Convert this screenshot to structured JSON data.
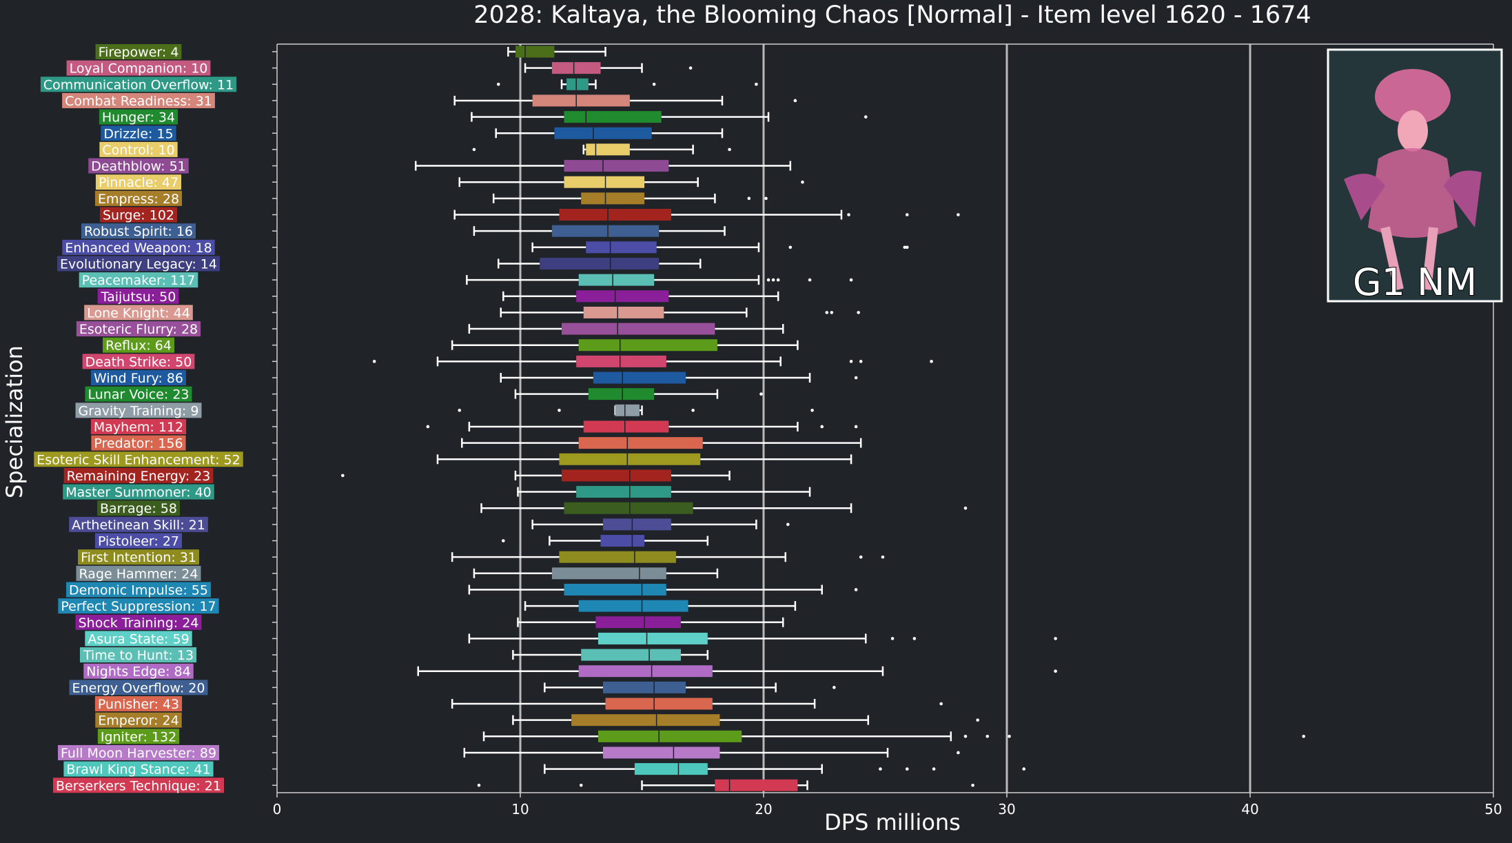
{
  "chart_data": {
    "type": "box",
    "orientation": "horizontal",
    "title": "2028: Kaltaya, the Blooming Chaos [Normal] - Item level 1620 - 1674",
    "xlabel": "DPS millions",
    "ylabel": "Specialization",
    "xlim": [
      0,
      50
    ],
    "xticks": [
      0,
      10,
      20,
      30,
      40,
      50
    ],
    "grid_x": true,
    "inset_label": "G1 NM",
    "series": [
      {
        "label": "Firepower: 4",
        "color": "#4b6e1b",
        "whislo": 9.5,
        "q1": 9.8,
        "med": 10.2,
        "q3": 11.4,
        "whishi": 13.5,
        "fliers": []
      },
      {
        "label": "Loyal Companion: 10",
        "color": "#c45a80",
        "whislo": 10.2,
        "q1": 11.3,
        "med": 12.2,
        "q3": 13.3,
        "whishi": 15.0,
        "fliers": [
          17.0
        ]
      },
      {
        "label": "Communication Overflow: 11",
        "color": "#2e9987",
        "whislo": 11.7,
        "q1": 11.9,
        "med": 12.3,
        "q3": 12.8,
        "whishi": 13.1,
        "fliers": [
          9.1,
          15.5,
          19.7
        ]
      },
      {
        "label": "Combat Readiness: 31",
        "color": "#d5867a",
        "whislo": 7.3,
        "q1": 10.5,
        "med": 12.3,
        "q3": 14.5,
        "whishi": 18.3,
        "fliers": [
          21.3
        ]
      },
      {
        "label": "Hunger: 34",
        "color": "#1f8a2e",
        "whislo": 8.0,
        "q1": 11.8,
        "med": 12.7,
        "q3": 15.8,
        "whishi": 20.2,
        "fliers": [
          24.2
        ]
      },
      {
        "label": "Drizzle: 15",
        "color": "#1e5aa0",
        "whislo": 9.0,
        "q1": 11.4,
        "med": 13.0,
        "q3": 15.4,
        "whishi": 18.3,
        "fliers": []
      },
      {
        "label": "Control: 10",
        "color": "#e8cd6a",
        "whislo": 12.6,
        "q1": 12.7,
        "med": 13.1,
        "q3": 14.5,
        "whishi": 17.1,
        "fliers": [
          8.1,
          18.6
        ]
      },
      {
        "label": "Deathblow: 51",
        "color": "#8e4a93",
        "whislo": 5.7,
        "q1": 11.8,
        "med": 13.4,
        "q3": 16.1,
        "whishi": 21.1,
        "fliers": []
      },
      {
        "label": "Pinnacle: 47",
        "color": "#e8cd6a",
        "whislo": 7.5,
        "q1": 11.8,
        "med": 13.5,
        "q3": 15.1,
        "whishi": 17.3,
        "fliers": [
          21.6
        ]
      },
      {
        "label": "Empress: 28",
        "color": "#a67d29",
        "whislo": 8.9,
        "q1": 12.5,
        "med": 13.5,
        "q3": 15.1,
        "whishi": 18.0,
        "fliers": [
          19.4,
          20.1
        ]
      },
      {
        "label": "Surge: 102",
        "color": "#a3231f",
        "whislo": 7.3,
        "q1": 11.6,
        "med": 13.6,
        "q3": 16.2,
        "whishi": 23.2,
        "fliers": [
          23.5,
          25.9,
          28.0
        ]
      },
      {
        "label": "Robust Spirit: 16",
        "color": "#3d5f91",
        "whislo": 8.1,
        "q1": 11.3,
        "med": 13.6,
        "q3": 15.7,
        "whishi": 18.4,
        "fliers": []
      },
      {
        "label": "Enhanced Weapon: 18",
        "color": "#4c4da6",
        "whislo": 10.5,
        "q1": 12.7,
        "med": 13.7,
        "q3": 15.6,
        "whishi": 19.8,
        "fliers": [
          21.1,
          25.8,
          25.9
        ]
      },
      {
        "label": "Evolutionary Legacy: 14",
        "color": "#3d3f80",
        "whislo": 9.1,
        "q1": 10.8,
        "med": 13.7,
        "q3": 15.7,
        "whishi": 17.4,
        "fliers": []
      },
      {
        "label": "Peacemaker: 117",
        "color": "#5bbfb5",
        "whislo": 7.8,
        "q1": 12.4,
        "med": 13.8,
        "q3": 15.5,
        "whishi": 19.8,
        "fliers": [
          20.2,
          20.4,
          20.6,
          21.9,
          23.6
        ]
      },
      {
        "label": "Taijutsu: 50",
        "color": "#8b1f9a",
        "whislo": 9.3,
        "q1": 12.3,
        "med": 13.9,
        "q3": 16.1,
        "whishi": 20.6,
        "fliers": []
      },
      {
        "label": "Lone Knight: 44",
        "color": "#d99890",
        "whislo": 9.2,
        "q1": 12.6,
        "med": 14.0,
        "q3": 15.9,
        "whishi": 19.3,
        "fliers": [
          22.6,
          22.8,
          23.9
        ]
      },
      {
        "label": "Esoteric Flurry: 28",
        "color": "#98509a",
        "whislo": 7.9,
        "q1": 11.7,
        "med": 14.0,
        "q3": 18.0,
        "whishi": 20.8,
        "fliers": []
      },
      {
        "label": "Reflux: 64",
        "color": "#5d9b1a",
        "whislo": 7.2,
        "q1": 12.4,
        "med": 14.1,
        "q3": 18.1,
        "whishi": 21.4,
        "fliers": []
      },
      {
        "label": "Death Strike: 50",
        "color": "#d1466e",
        "whislo": 6.6,
        "q1": 12.3,
        "med": 14.1,
        "q3": 16.0,
        "whishi": 20.7,
        "fliers": [
          4.0,
          23.6,
          24.0,
          26.9
        ]
      },
      {
        "label": "Wind Fury: 86",
        "color": "#1e5aa0",
        "whislo": 9.2,
        "q1": 13.0,
        "med": 14.2,
        "q3": 16.8,
        "whishi": 21.9,
        "fliers": [
          23.8
        ]
      },
      {
        "label": "Lunar Voice: 23",
        "color": "#1f8a2e",
        "whislo": 9.8,
        "q1": 12.8,
        "med": 14.2,
        "q3": 15.5,
        "whishi": 18.1,
        "fliers": [
          19.9
        ]
      },
      {
        "label": "Gravity Training: 9",
        "color": "#8f9ea6",
        "whislo": 13.9,
        "q1": 13.9,
        "med": 14.3,
        "q3": 14.9,
        "whishi": 15.0,
        "fliers": [
          7.5,
          11.6,
          17.1,
          22.0
        ]
      },
      {
        "label": "Mayhem: 112",
        "color": "#d13a52",
        "whislo": 7.9,
        "q1": 12.6,
        "med": 14.3,
        "q3": 16.1,
        "whishi": 21.4,
        "fliers": [
          6.2,
          22.4,
          23.8
        ]
      },
      {
        "label": "Predator: 156",
        "color": "#d9664e",
        "whislo": 7.6,
        "q1": 12.4,
        "med": 14.4,
        "q3": 17.5,
        "whishi": 24.0,
        "fliers": []
      },
      {
        "label": "Esoteric Skill Enhancement: 52",
        "color": "#9e9a20",
        "whislo": 6.6,
        "q1": 11.6,
        "med": 14.4,
        "q3": 17.4,
        "whishi": 23.6,
        "fliers": []
      },
      {
        "label": "Remaining Energy: 23",
        "color": "#a3231f",
        "whislo": 9.8,
        "q1": 11.7,
        "med": 14.5,
        "q3": 16.2,
        "whishi": 18.6,
        "fliers": [
          2.7
        ]
      },
      {
        "label": "Master Summoner: 40",
        "color": "#2e9987",
        "whislo": 9.9,
        "q1": 12.3,
        "med": 14.5,
        "q3": 16.2,
        "whishi": 21.9,
        "fliers": []
      },
      {
        "label": "Barrage: 58",
        "color": "#3b5e1f",
        "whislo": 8.4,
        "q1": 11.8,
        "med": 14.5,
        "q3": 17.1,
        "whishi": 23.6,
        "fliers": [
          28.3
        ]
      },
      {
        "label": "Arthetinean Skill: 21",
        "color": "#4c4d96",
        "whislo": 10.5,
        "q1": 13.4,
        "med": 14.6,
        "q3": 16.2,
        "whishi": 19.7,
        "fliers": [
          21.0
        ]
      },
      {
        "label": "Pistoleer: 27",
        "color": "#4c4da6",
        "whislo": 11.2,
        "q1": 13.3,
        "med": 14.6,
        "q3": 15.1,
        "whishi": 17.7,
        "fliers": [
          9.3
        ]
      },
      {
        "label": "First Intention: 31",
        "color": "#8f8c1f",
        "whislo": 7.2,
        "q1": 11.6,
        "med": 14.7,
        "q3": 16.4,
        "whishi": 20.9,
        "fliers": [
          24.0,
          24.9
        ]
      },
      {
        "label": "Rage Hammer: 24",
        "color": "#7b8d96",
        "whislo": 8.1,
        "q1": 11.3,
        "med": 14.9,
        "q3": 16.0,
        "whishi": 18.1,
        "fliers": []
      },
      {
        "label": "Demonic Impulse: 55",
        "color": "#1e87b3",
        "whislo": 7.9,
        "q1": 11.8,
        "med": 15.0,
        "q3": 16.0,
        "whishi": 22.4,
        "fliers": [
          23.8
        ]
      },
      {
        "label": "Perfect Suppression: 17",
        "color": "#1e87b3",
        "whislo": 10.2,
        "q1": 12.4,
        "med": 15.0,
        "q3": 16.9,
        "whishi": 21.3,
        "fliers": []
      },
      {
        "label": "Shock Training: 24",
        "color": "#8b1f9a",
        "whislo": 9.9,
        "q1": 13.1,
        "med": 15.1,
        "q3": 16.6,
        "whishi": 20.8,
        "fliers": []
      },
      {
        "label": "Asura State: 59",
        "color": "#5fd0c7",
        "whislo": 7.9,
        "q1": 13.2,
        "med": 15.2,
        "q3": 17.7,
        "whishi": 24.2,
        "fliers": [
          25.3,
          26.2,
          32.0
        ]
      },
      {
        "label": "Time to Hunt: 13",
        "color": "#5bbfb5",
        "whislo": 9.7,
        "q1": 12.5,
        "med": 15.3,
        "q3": 16.6,
        "whishi": 17.7,
        "fliers": []
      },
      {
        "label": "Nights Edge: 84",
        "color": "#b06cc4",
        "whislo": 5.8,
        "q1": 12.4,
        "med": 15.4,
        "q3": 17.9,
        "whishi": 24.9,
        "fliers": [
          32.0
        ]
      },
      {
        "label": "Energy Overflow: 20",
        "color": "#3d5f91",
        "whislo": 11.0,
        "q1": 13.4,
        "med": 15.5,
        "q3": 16.8,
        "whishi": 20.5,
        "fliers": [
          22.9
        ]
      },
      {
        "label": "Punisher: 43",
        "color": "#d9664e",
        "whislo": 7.2,
        "q1": 13.5,
        "med": 15.5,
        "q3": 17.9,
        "whishi": 22.1,
        "fliers": [
          27.3
        ]
      },
      {
        "label": "Emperor: 24",
        "color": "#a67d29",
        "whislo": 9.7,
        "q1": 12.1,
        "med": 15.6,
        "q3": 18.2,
        "whishi": 24.3,
        "fliers": [
          28.8
        ]
      },
      {
        "label": "Igniter: 132",
        "color": "#5d9b1a",
        "whislo": 8.5,
        "q1": 13.2,
        "med": 15.7,
        "q3": 19.1,
        "whishi": 27.7,
        "fliers": [
          28.3,
          29.2,
          30.1,
          42.2
        ]
      },
      {
        "label": "Full Moon Harvester: 89",
        "color": "#b77ac9",
        "whislo": 7.7,
        "q1": 13.4,
        "med": 16.3,
        "q3": 18.2,
        "whishi": 25.1,
        "fliers": [
          28.0
        ]
      },
      {
        "label": "Brawl King Stance: 41",
        "color": "#4ec8bd",
        "whislo": 11.0,
        "q1": 14.7,
        "med": 16.5,
        "q3": 17.7,
        "whishi": 22.4,
        "fliers": [
          24.8,
          25.9,
          27.0,
          30.7
        ]
      },
      {
        "label": "Berserkers Technique: 21",
        "color": "#d13a52",
        "whislo": 15.0,
        "q1": 18.0,
        "med": 18.6,
        "q3": 21.4,
        "whishi": 21.8,
        "fliers": [
          8.3,
          12.5,
          28.6
        ]
      }
    ]
  }
}
